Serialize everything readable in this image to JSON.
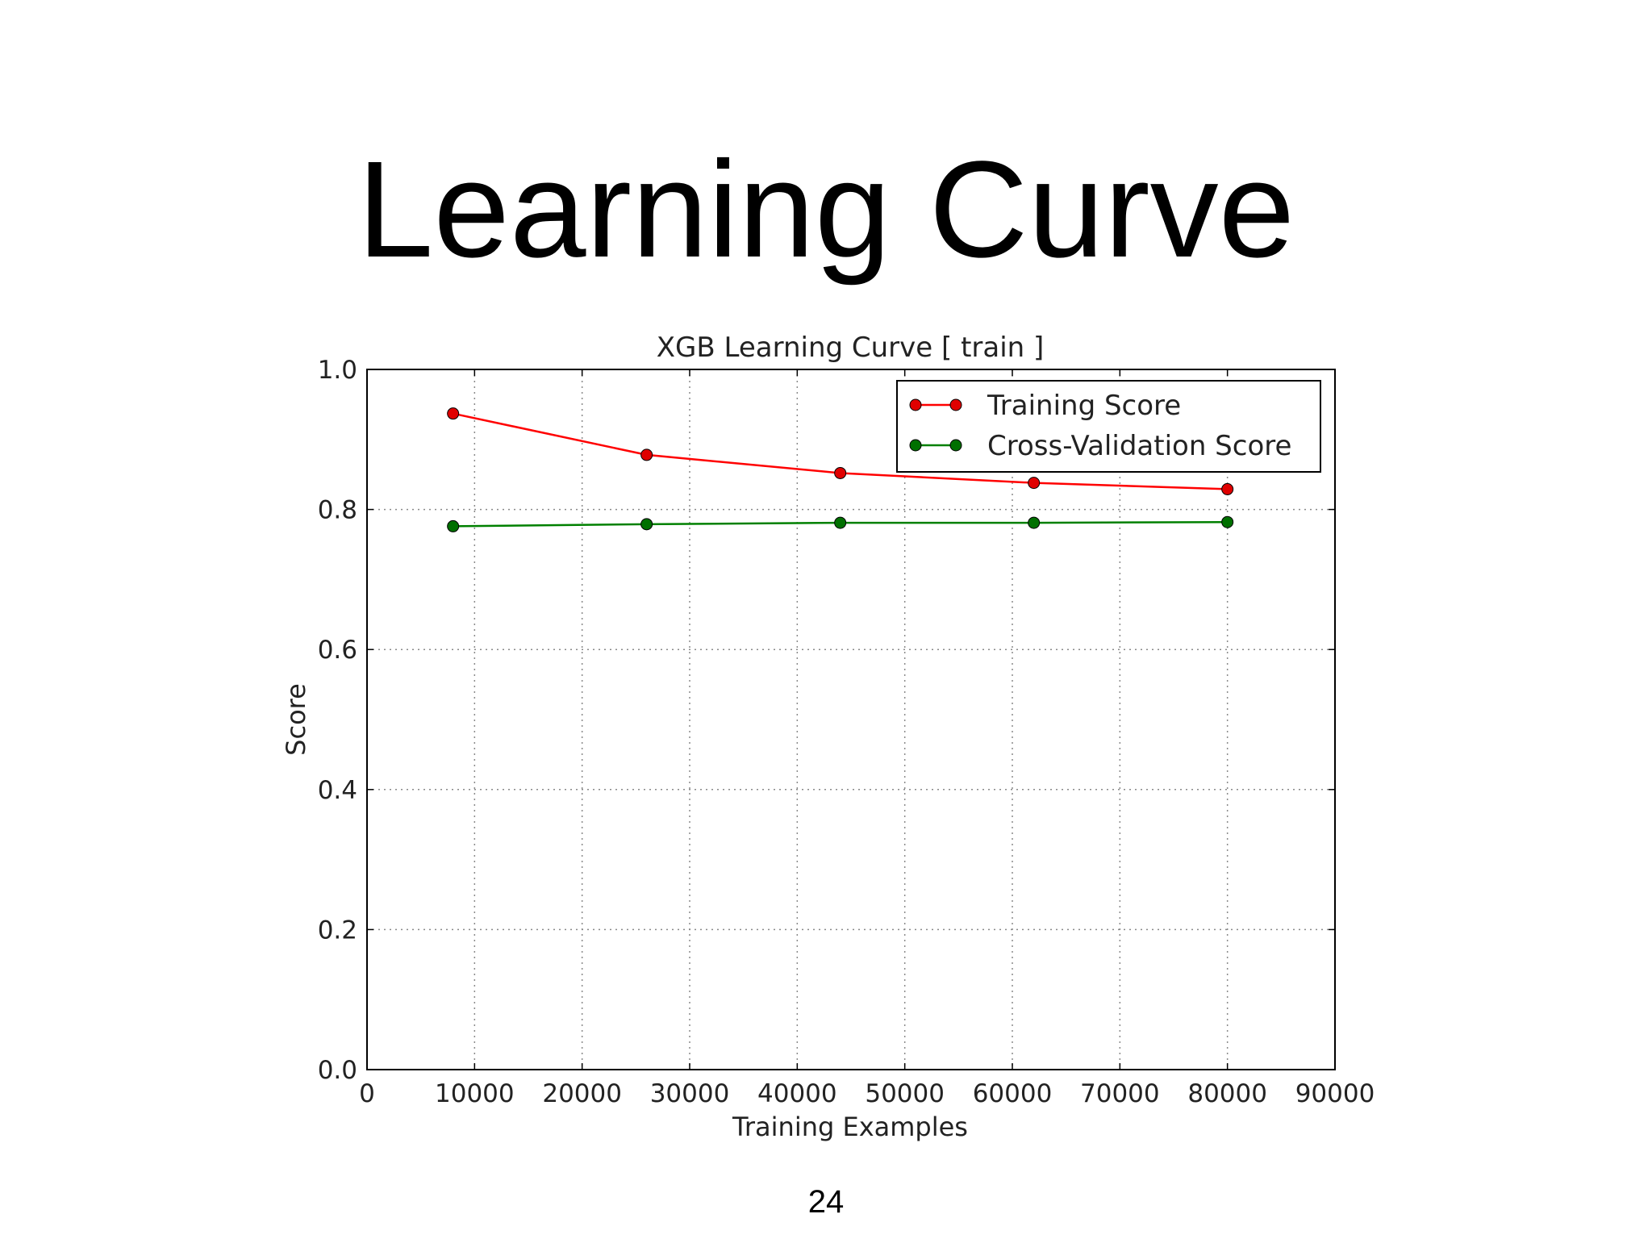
{
  "slide": {
    "title": "Learning Curve",
    "page_number": "24"
  },
  "chart_data": {
    "type": "line",
    "title": "XGB Learning Curve [ train ]",
    "xlabel": "Training Examples",
    "ylabel": "Score",
    "xlim": [
      0,
      90000
    ],
    "ylim": [
      0.0,
      1.0
    ],
    "xticks": [
      0,
      10000,
      20000,
      30000,
      40000,
      50000,
      60000,
      70000,
      80000,
      90000
    ],
    "yticks": [
      0.0,
      0.2,
      0.4,
      0.6,
      0.8,
      1.0
    ],
    "grid": true,
    "legend_position": "top-right",
    "x": [
      8000,
      26000,
      44000,
      62000,
      80000
    ],
    "series": [
      {
        "name": "Training Score",
        "color": "#ff0000",
        "marker_color": "#e00000",
        "values": [
          0.937,
          0.878,
          0.852,
          0.838,
          0.829
        ]
      },
      {
        "name": "Cross-Validation Score",
        "color": "#008000",
        "marker_color": "#007000",
        "values": [
          0.776,
          0.779,
          0.781,
          0.781,
          0.782
        ]
      }
    ]
  }
}
